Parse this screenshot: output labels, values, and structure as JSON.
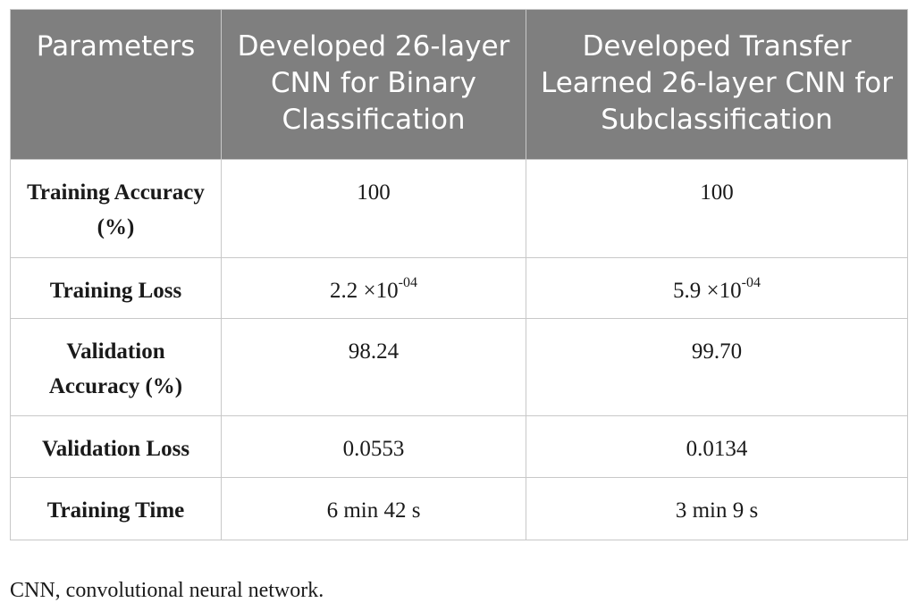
{
  "table": {
    "headers": [
      "Parameters",
      "Developed 26-layer CNN for Binary Classification",
      "Developed Transfer Learned 26-layer CNN for Subclassification"
    ],
    "rows": [
      {
        "parameter": "Training Accuracy (%)",
        "binary": "100",
        "sub": "100"
      },
      {
        "parameter": "Training Loss",
        "binary": {
          "base": "2.2 ×10",
          "exp": "-04"
        },
        "sub": {
          "base": "5.9 ×10",
          "exp": "-04"
        }
      },
      {
        "parameter": "Validation Accuracy (%)",
        "binary": "98.24",
        "sub": "99.70"
      },
      {
        "parameter": "Validation Loss",
        "binary": "0.0553",
        "sub": "0.0134"
      },
      {
        "parameter": "Training Time",
        "binary": "6 min 42 s",
        "sub": "3 min 9 s"
      }
    ]
  },
  "footnote": "CNN, convolutional neural network."
}
